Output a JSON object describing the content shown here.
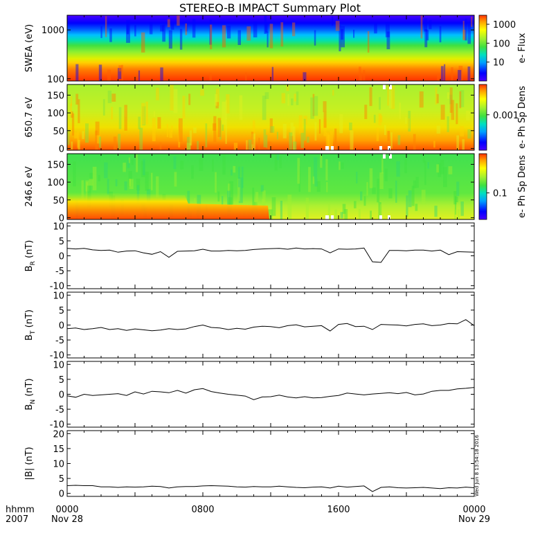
{
  "title": "STEREO-B IMPACT Summary Plot",
  "footer": {
    "left_label_1": "hhmm",
    "left_label_2": "2007",
    "stamp": "Wed Jun  8 13:54:18 2016"
  },
  "chart_data": [
    {
      "type": "heatmap",
      "id": "swea",
      "ylabel": "SWEA (eV)",
      "yscale": "log",
      "ylim": [
        90,
        2000
      ],
      "yticks": [
        100,
        1000
      ],
      "yticklabels": [
        "100",
        "1000"
      ],
      "xlim_hours": [
        0,
        24
      ],
      "colorbar": {
        "label": "e- Flux",
        "scale": "log",
        "ticks": [
          10,
          100,
          1000
        ],
        "ticklabels": [
          "10",
          "100",
          "1000"
        ]
      },
      "colors_low_to_high": [
        "#4a00ff",
        "#0000ff",
        "#00a0ff",
        "#00e0c0",
        "#40e040",
        "#a0f030",
        "#ffff00",
        "#ffa000",
        "#ff4000"
      ]
    },
    {
      "type": "heatmap",
      "id": "pad_650",
      "ylabel": "650.7 eV",
      "ylim": [
        -5,
        180
      ],
      "yticks": [
        0,
        50,
        100,
        150
      ],
      "yticklabels": [
        "0",
        "50",
        "100",
        "150"
      ],
      "colorbar": {
        "label": "e- Ph Sp Dens",
        "scale": "log",
        "ticks": [
          0.001
        ],
        "ticklabels": [
          "0.001"
        ]
      }
    },
    {
      "type": "heatmap",
      "id": "pad_246",
      "ylabel": "246.6 eV",
      "ylim": [
        -5,
        180
      ],
      "yticks": [
        0,
        50,
        100,
        150
      ],
      "yticklabels": [
        "0",
        "50",
        "100",
        "150"
      ],
      "colorbar": {
        "label": "e- Ph Sp Dens",
        "scale": "log",
        "ticks": [
          0.1
        ],
        "ticklabels": [
          "0.1"
        ]
      }
    },
    {
      "type": "line",
      "id": "br",
      "ylabel_main": "B",
      "ylabel_sub": "R",
      "ylabel_unit": " (nT)",
      "ylim": [
        -11,
        11
      ],
      "yticks": [
        -10,
        -5,
        0,
        5,
        10
      ],
      "yticklabels": [
        "-10",
        "-5",
        "0",
        "5",
        "10"
      ],
      "x": [
        0,
        0.5,
        1,
        1.5,
        2,
        2.5,
        3,
        3.5,
        4,
        4.5,
        5,
        5.5,
        6,
        6.5,
        7,
        7.5,
        8,
        8.5,
        9,
        9.5,
        10,
        10.5,
        11,
        11.5,
        12,
        12.5,
        13,
        13.5,
        14,
        14.5,
        15,
        15.5,
        16,
        16.5,
        17,
        17.5,
        18,
        18.5,
        19,
        19.5,
        20,
        20.5,
        21,
        21.5,
        22,
        22.5,
        23,
        23.5,
        24
      ],
      "y": [
        2.5,
        2.3,
        2.5,
        2.0,
        1.8,
        1.9,
        1.2,
        1.6,
        1.7,
        1.0,
        0.5,
        1.4,
        -0.5,
        1.5,
        1.6,
        1.7,
        2.2,
        1.6,
        1.6,
        1.8,
        1.7,
        1.8,
        2.1,
        2.3,
        2.4,
        2.5,
        2.2,
        2.6,
        2.3,
        2.4,
        2.3,
        1.0,
        2.3,
        2.2,
        2.3,
        2.6,
        -2.0,
        -2.2,
        1.8,
        1.8,
        1.7,
        1.9,
        1.9,
        1.6,
        1.9,
        0.4,
        1.4,
        1.3,
        1.2
      ]
    },
    {
      "type": "line",
      "id": "bt",
      "ylabel_main": "B",
      "ylabel_sub": "T",
      "ylabel_unit": " (nT)",
      "ylim": [
        -11,
        11
      ],
      "yticks": [
        -10,
        -5,
        0,
        5,
        10
      ],
      "yticklabels": [
        "-10",
        "-5",
        "0",
        "5",
        "10"
      ],
      "x": [
        0,
        0.5,
        1,
        1.5,
        2,
        2.5,
        3,
        3.5,
        4,
        4.5,
        5,
        5.5,
        6,
        6.5,
        7,
        7.5,
        8,
        8.5,
        9,
        9.5,
        10,
        10.5,
        11,
        11.5,
        12,
        12.5,
        13,
        13.5,
        14,
        14.5,
        15,
        15.5,
        16,
        16.5,
        17,
        17.5,
        18,
        18.5,
        19,
        19.5,
        20,
        20.5,
        21,
        21.5,
        22,
        22.5,
        23,
        23.5,
        24
      ],
      "y": [
        -1.2,
        -1.0,
        -1.5,
        -1.2,
        -0.8,
        -1.5,
        -1.2,
        -1.8,
        -1.3,
        -1.6,
        -1.9,
        -1.7,
        -1.2,
        -1.5,
        -1.3,
        -0.5,
        0.0,
        -0.8,
        -1.0,
        -1.5,
        -1.1,
        -1.4,
        -0.7,
        -0.4,
        -0.5,
        -0.9,
        -0.2,
        0.1,
        -0.6,
        -0.4,
        -0.2,
        -2.0,
        0.2,
        0.5,
        -0.5,
        -0.4,
        -1.5,
        0.2,
        0.1,
        0.0,
        -0.3,
        0.2,
        0.4,
        -0.2,
        0.0,
        0.5,
        0.4,
        1.8,
        -0.2
      ]
    },
    {
      "type": "line",
      "id": "bn",
      "ylabel_main": "B",
      "ylabel_sub": "N",
      "ylabel_unit": " (nT)",
      "ylim": [
        -11,
        11
      ],
      "yticks": [
        -10,
        -5,
        0,
        5,
        10
      ],
      "yticklabels": [
        "-10",
        "-5",
        "0",
        "5",
        "10"
      ],
      "x": [
        0,
        0.5,
        1,
        1.5,
        2,
        2.5,
        3,
        3.5,
        4,
        4.5,
        5,
        5.5,
        6,
        6.5,
        7,
        7.5,
        8,
        8.5,
        9,
        9.5,
        10,
        10.5,
        11,
        11.5,
        12,
        12.5,
        13,
        13.5,
        14,
        14.5,
        15,
        15.5,
        16,
        16.5,
        17,
        17.5,
        18,
        18.5,
        19,
        19.5,
        20,
        20.5,
        21,
        21.5,
        22,
        22.5,
        23,
        23.5,
        24
      ],
      "y": [
        -0.5,
        -1.0,
        0.0,
        -0.4,
        -0.2,
        0.0,
        0.2,
        -0.4,
        0.8,
        0.1,
        1.0,
        0.8,
        0.5,
        1.3,
        0.4,
        1.5,
        1.9,
        0.9,
        0.4,
        0.0,
        -0.3,
        -0.6,
        -1.8,
        -0.9,
        -0.8,
        -0.3,
        -0.9,
        -1.2,
        -0.8,
        -1.2,
        -1.1,
        -0.7,
        -0.4,
        0.4,
        0.1,
        -0.2,
        0.1,
        0.3,
        0.5,
        0.2,
        0.6,
        -0.2,
        0.1,
        1.0,
        1.3,
        1.3,
        1.8,
        2.0,
        2.3
      ]
    },
    {
      "type": "line",
      "id": "babs",
      "ylabel": "|B| (nT)",
      "ylim": [
        -1,
        21
      ],
      "yticks": [
        0,
        5,
        10,
        15,
        20
      ],
      "yticklabels": [
        "0",
        "5",
        "10",
        "15",
        "20"
      ],
      "x": [
        0,
        0.5,
        1,
        1.5,
        2,
        2.5,
        3,
        3.5,
        4,
        4.5,
        5,
        5.5,
        6,
        6.5,
        7,
        7.5,
        8,
        8.5,
        9,
        9.5,
        10,
        10.5,
        11,
        11.5,
        12,
        12.5,
        13,
        13.5,
        14,
        14.5,
        15,
        15.5,
        16,
        16.5,
        17,
        17.5,
        18,
        18.5,
        19,
        19.5,
        20,
        20.5,
        21,
        21.5,
        22,
        22.5,
        23,
        23.5,
        24
      ],
      "y": [
        2.6,
        2.7,
        2.6,
        2.6,
        2.2,
        2.2,
        2.0,
        2.2,
        2.1,
        2.2,
        2.4,
        2.3,
        1.8,
        2.2,
        2.3,
        2.3,
        2.5,
        2.6,
        2.5,
        2.4,
        2.2,
        2.1,
        2.3,
        2.2,
        2.2,
        2.4,
        2.2,
        2.0,
        1.9,
        2.1,
        2.2,
        1.8,
        2.4,
        2.1,
        2.3,
        2.5,
        0.6,
        2.0,
        2.2,
        1.9,
        1.8,
        1.9,
        2.0,
        1.8,
        1.6,
        1.9,
        1.8,
        2.1,
        1.9
      ]
    }
  ],
  "xaxis": {
    "ticks_hours": [
      0,
      8,
      16,
      24
    ],
    "ticklabels": [
      "0000",
      "0800",
      "1600",
      "0000"
    ],
    "sublabels": [
      "Nov 28",
      "",
      "",
      "Nov 29"
    ]
  }
}
